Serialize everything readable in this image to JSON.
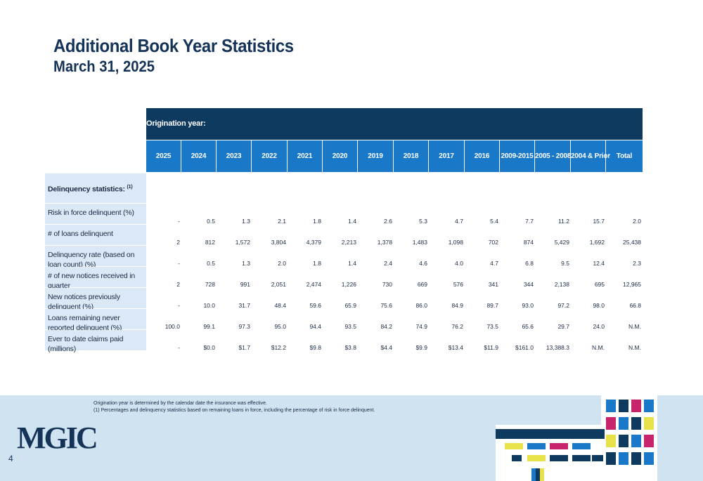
{
  "title": "Additional Book Year Statistics",
  "subtitle": "March 31, 2025",
  "table": {
    "origination_label": "Origination year:",
    "years": [
      "2025",
      "2024",
      "2023",
      "2022",
      "2021",
      "2020",
      "2019",
      "2018",
      "2017",
      "2016",
      "2009-2015",
      "2005 - 2008",
      "2004 & Prior",
      "Total"
    ],
    "section_label": "Delinquency statistics:",
    "section_sup": "(1)",
    "rows": [
      {
        "label": "Risk in force delinquent (%)",
        "values": [
          "-",
          "0.5",
          "1.3",
          "2.1",
          "1.8",
          "1.4",
          "2.6",
          "5.3",
          "4.7",
          "5.4",
          "7.7",
          "11.2",
          "15.7",
          "2.0"
        ]
      },
      {
        "label": "# of loans delinquent",
        "values": [
          "2",
          "812",
          "1,572",
          "3,804",
          "4,379",
          "2,213",
          "1,378",
          "1,483",
          "1,098",
          "702",
          "874",
          "5,429",
          "1,692",
          "25,438"
        ]
      },
      {
        "label": "Delinquency rate (based on loan count) (%)",
        "values": [
          "-",
          "0.5",
          "1.3",
          "2.0",
          "1.8",
          "1.4",
          "2.4",
          "4.6",
          "4.0",
          "4.7",
          "6.8",
          "9.5",
          "12.4",
          "2.3"
        ]
      },
      {
        "label": "# of new notices received in quarter",
        "values": [
          "2",
          "728",
          "991",
          "2,051",
          "2,474",
          "1,226",
          "730",
          "669",
          "576",
          "341",
          "344",
          "2,138",
          "695",
          "12,965"
        ]
      },
      {
        "label": "New notices previously delinquent (%)",
        "values": [
          "-",
          "10.0",
          "31.7",
          "48.4",
          "59.6",
          "65.9",
          "75.6",
          "86.0",
          "84.9",
          "89.7",
          "93.0",
          "97.2",
          "98.0",
          "66.8"
        ]
      },
      {
        "label": "Loans remaining never reported delinquent (%)",
        "values": [
          "100.0",
          "99.1",
          "97.3",
          "95.0",
          "94.4",
          "93.5",
          "84.2",
          "74.9",
          "76.2",
          "73.5",
          "65.6",
          "29.7",
          "24.0",
          "N.M."
        ]
      },
      {
        "label": "Ever to date claims paid (millions)",
        "values": [
          "-",
          "$0.0",
          "$1.7",
          "$12.2",
          "$9.8",
          "$3.8",
          "$4.4",
          "$9.9",
          "$13.4",
          "$11.9",
          "$161.0",
          "13,388.3",
          "N.M.",
          "N.M."
        ]
      }
    ]
  },
  "footnotes": {
    "line1": "Origination year is determined by the calendar date the insurance was effective.",
    "line2": "(1)  Percentages and delinquency statistics based on remaining loans in force, including the percentage of risk in force delinquent."
  },
  "logo_text": "MGIC",
  "page_number": "4",
  "colors": {
    "header_dark": "#0f3a60",
    "header_blue": "#1a78c9",
    "label_bg": "#dbe9f6",
    "footer_bg": "#cfe3f0",
    "title": "#143357"
  }
}
